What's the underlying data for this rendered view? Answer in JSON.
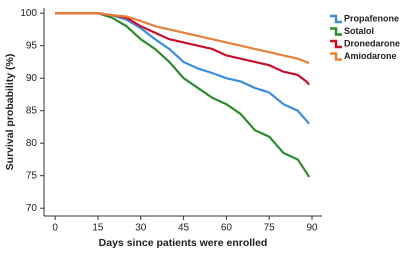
{
  "chart_data": {
    "type": "line",
    "xlabel": "Days since patients were enrolled",
    "ylabel": "Survival probability (%)",
    "x": [
      0,
      15,
      20,
      25,
      30,
      35,
      40,
      45,
      50,
      55,
      60,
      65,
      70,
      75,
      80,
      85,
      88,
      89
    ],
    "series": [
      {
        "name": "Propafenone",
        "color": "#3a8fd8",
        "values": [
          100,
          100,
          99.7,
          99,
          97.7,
          96,
          94.5,
          92.5,
          91.5,
          90.8,
          90,
          89.5,
          88.5,
          87.8,
          86,
          85,
          83.5,
          83
        ]
      },
      {
        "name": "Sotalol",
        "color": "#2e8b2e",
        "values": [
          100,
          100,
          99.3,
          98,
          96,
          94.5,
          92.5,
          90,
          88.5,
          87,
          86,
          84.5,
          82,
          81,
          78.5,
          77.5,
          75.5,
          74.8
        ]
      },
      {
        "name": "Dronedarone",
        "color": "#c8102e",
        "values": [
          100,
          100,
          99.7,
          99.3,
          98,
          97,
          96,
          95.5,
          95,
          94.5,
          93.5,
          93,
          92.5,
          92,
          91,
          90.5,
          89.5,
          89
        ]
      },
      {
        "name": "Amiodarone",
        "color": "#e8803a",
        "values": [
          100,
          100,
          99.7,
          99.5,
          98.8,
          98,
          97.5,
          97,
          96.5,
          96,
          95.5,
          95,
          94.5,
          94,
          93.5,
          93,
          92.5,
          92.3
        ]
      }
    ],
    "xlim": [
      -3.9,
      93.5
    ],
    "ylim": [
      68.8,
      100.8
    ],
    "xticks": [
      0,
      15,
      30,
      45,
      60,
      75,
      90
    ],
    "yticks": [
      70,
      75,
      80,
      85,
      90,
      95,
      100
    ],
    "grid": false,
    "legend": "upper right"
  }
}
